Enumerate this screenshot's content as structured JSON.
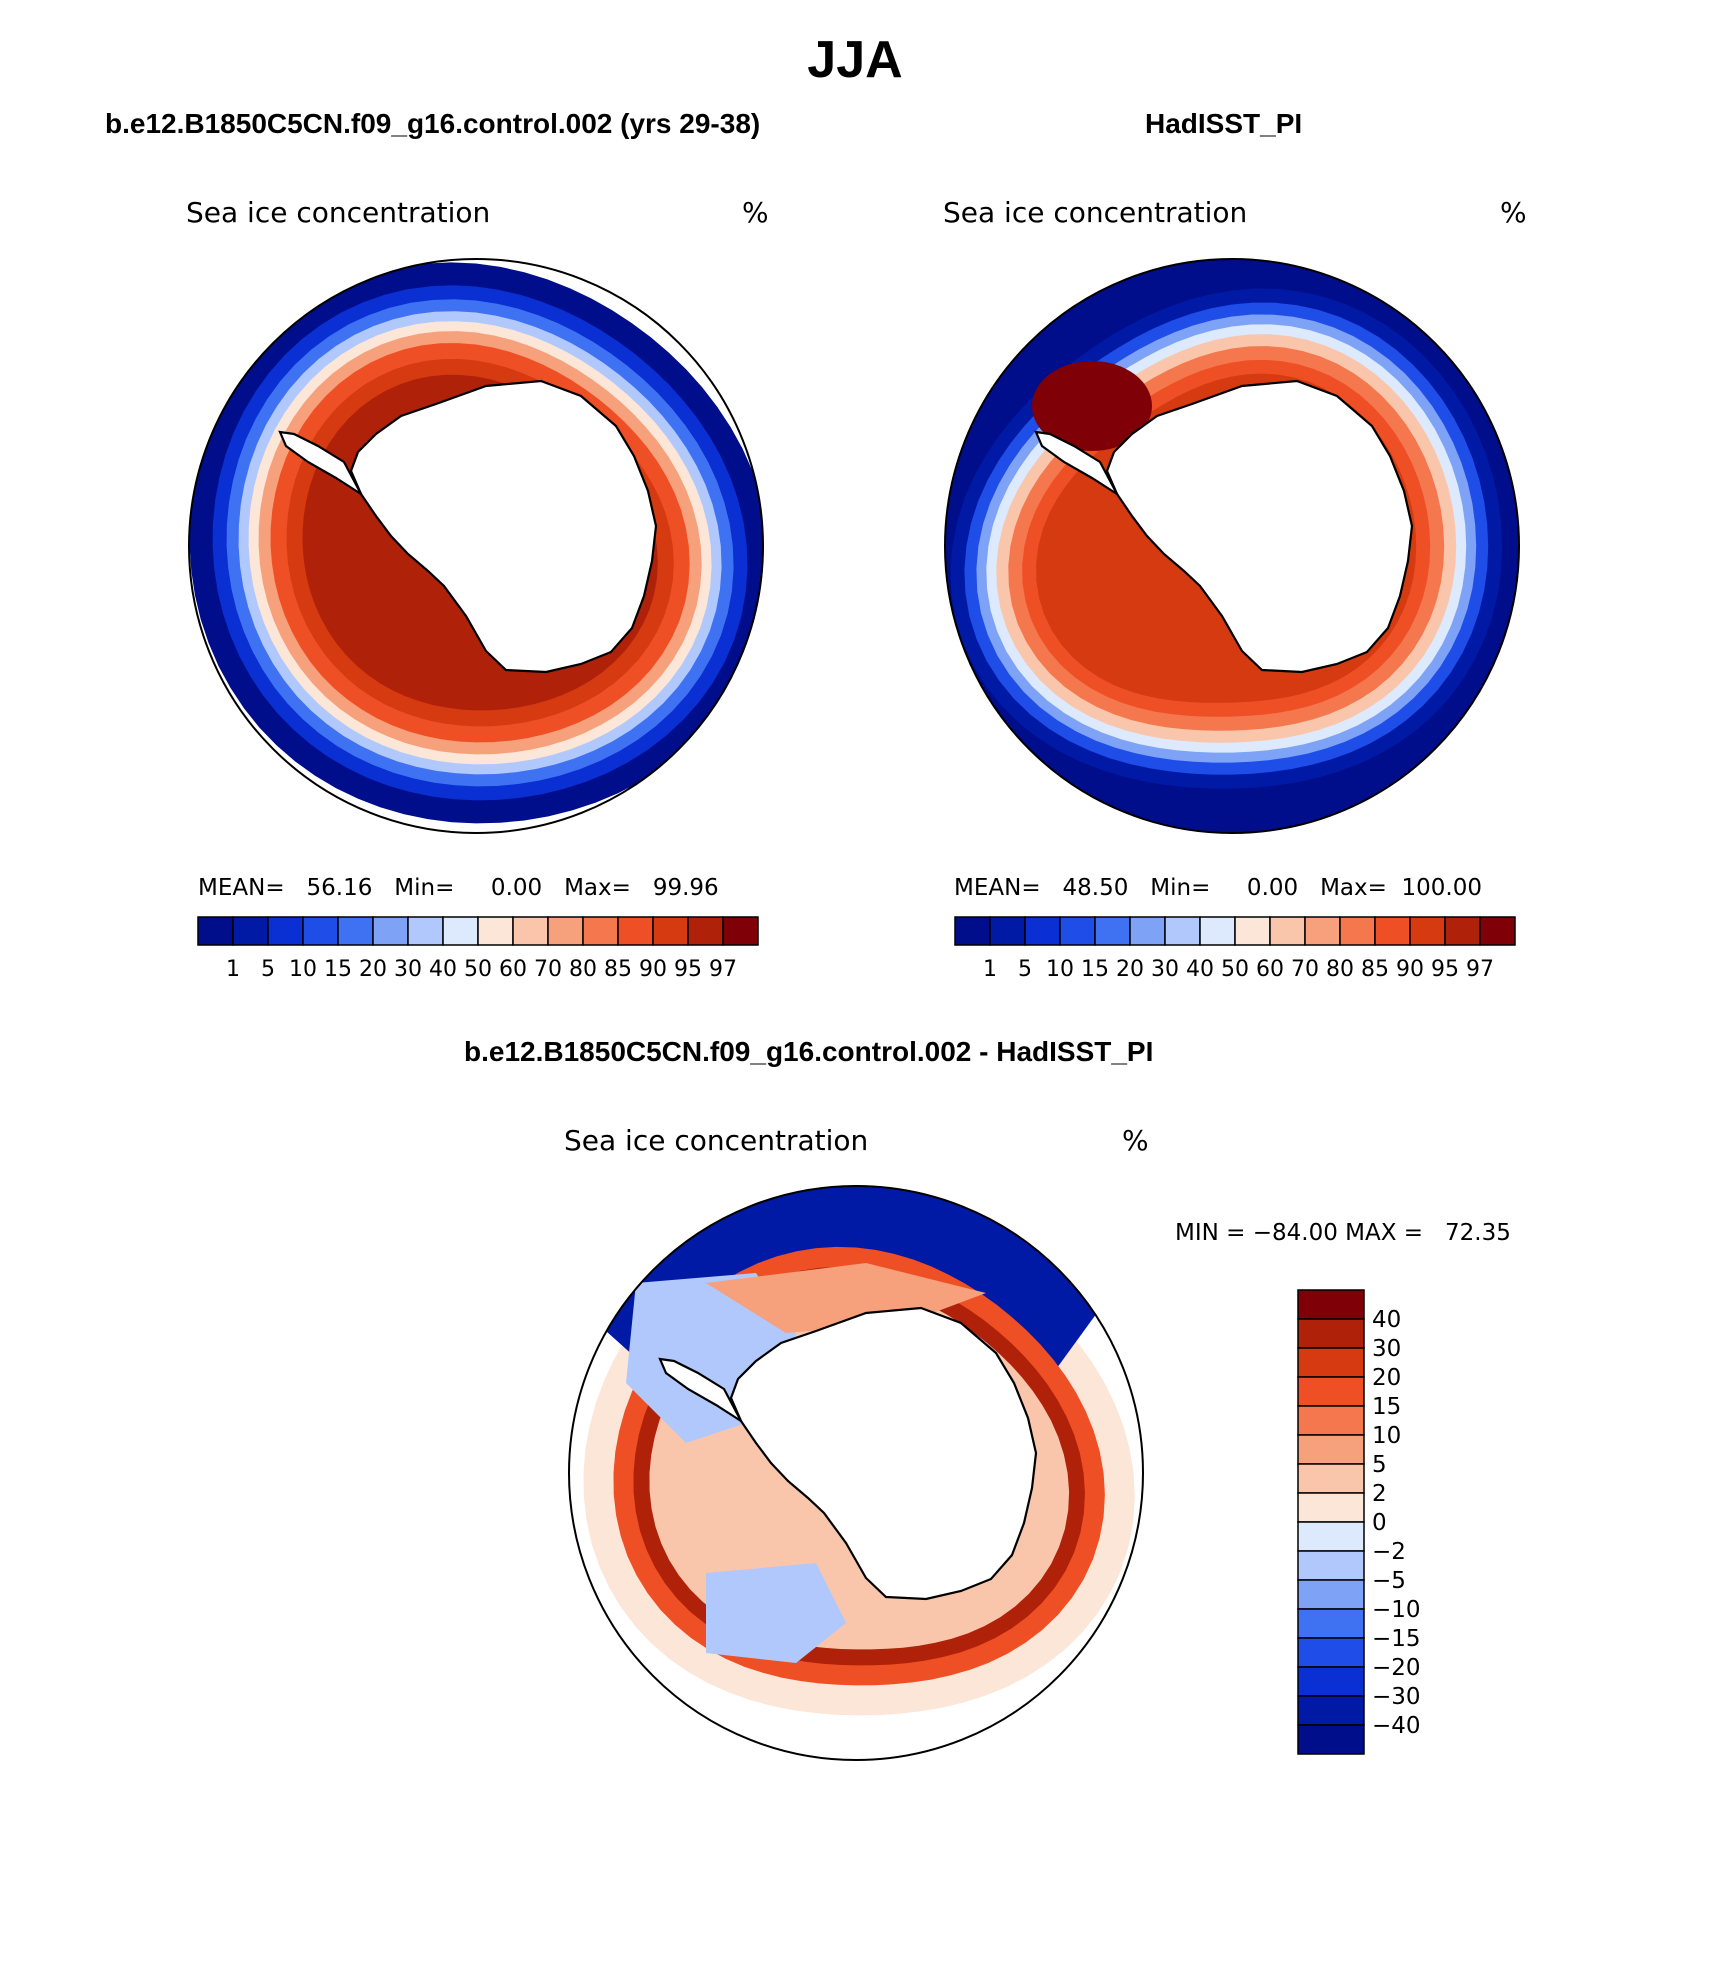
{
  "title": "JJA",
  "colors": {
    "ice_scale": [
      "#000e8c",
      "#001aa6",
      "#0a2fd2",
      "#1f4de8",
      "#3f72f2",
      "#7ea2f6",
      "#b0c8fb",
      "#dde9fc",
      "#fbe6d8",
      "#f9c6ac",
      "#f6a07c",
      "#f4774e",
      "#ef4f24",
      "#d53a10",
      "#b0210a",
      "#800008"
    ],
    "diff_scale": [
      "#000e8c",
      "#001aa6",
      "#0a2fd2",
      "#1f4de8",
      "#3f72f2",
      "#7ea2f6",
      "#b0c8fb",
      "#dde9fc",
      "#fbe6d8",
      "#f9c6ac",
      "#f6a07c",
      "#f4774e",
      "#ef4f24",
      "#d53a10",
      "#b0210a",
      "#800008"
    ],
    "land": "#ffffff",
    "coast": "#000000"
  },
  "panels": [
    {
      "title": "b.e12.B1850C5CN.f09_g16.control.002 (yrs 29-38)",
      "field_label": "Sea ice concentration",
      "units": "%",
      "stats": "MEAN=   56.16   Min=     0.00   Max=   99.96",
      "colorbar_ticks": [
        "1",
        "5",
        "10",
        "15",
        "20",
        "30",
        "40",
        "50",
        "60",
        "70",
        "80",
        "85",
        "90",
        "95",
        "97"
      ]
    },
    {
      "title": "HadISST_PI",
      "field_label": "Sea ice concentration",
      "units": "%",
      "stats": "MEAN=   48.50   Min=     0.00   Max=  100.00",
      "colorbar_ticks": [
        "1",
        "5",
        "10",
        "15",
        "20",
        "30",
        "40",
        "50",
        "60",
        "70",
        "80",
        "85",
        "90",
        "95",
        "97"
      ]
    }
  ],
  "diff_panel": {
    "title": "b.e12.B1850C5CN.f09_g16.control.002 - HadISST_PI",
    "field_label": "Sea ice concentration",
    "units": "%",
    "stats": "MIN = −84.00 MAX =   72.35",
    "colorbar_ticks": [
      "40",
      "30",
      "20",
      "15",
      "10",
      "5",
      "2",
      "0",
      "−2",
      "−5",
      "−10",
      "−15",
      "−20",
      "−30",
      "−40"
    ]
  }
}
